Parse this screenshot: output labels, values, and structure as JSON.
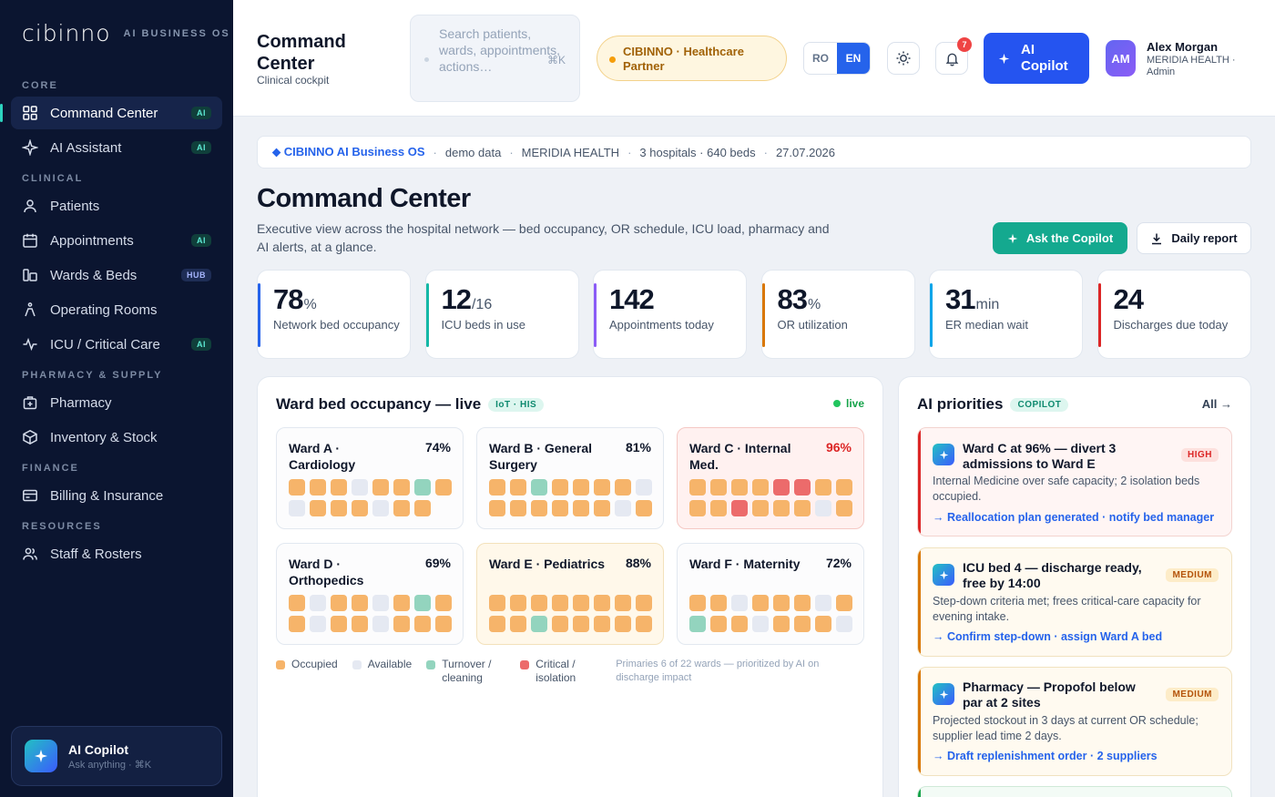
{
  "brand": {
    "logo": "cibinno",
    "tagline": "AI BUSINESS OS"
  },
  "nav": [
    {
      "section": "CORE",
      "items": [
        {
          "label": "Command Center",
          "badge": "AI",
          "icon": "grid-icon",
          "active": true
        },
        {
          "label": "AI Assistant",
          "badge": "AI",
          "icon": "sparkle-icon"
        }
      ]
    },
    {
      "section": "CLINICAL",
      "items": [
        {
          "label": "Patients",
          "icon": "user-icon"
        },
        {
          "label": "Appointments",
          "badge": "AI",
          "icon": "calendar-icon"
        },
        {
          "label": "Wards & Beds",
          "badge": "HUB",
          "icon": "bed-icon"
        },
        {
          "label": "Operating Rooms",
          "icon": "surgery-icon"
        },
        {
          "label": "ICU / Critical Care",
          "badge": "AI",
          "icon": "pulse-icon"
        }
      ]
    },
    {
      "section": "PHARMACY & SUPPLY",
      "items": [
        {
          "label": "Pharmacy",
          "icon": "pharmacy-icon"
        },
        {
          "label": "Inventory & Stock",
          "icon": "box-icon"
        }
      ]
    },
    {
      "section": "FINANCE",
      "items": [
        {
          "label": "Billing & Insurance",
          "icon": "card-icon"
        }
      ]
    },
    {
      "section": "RESOURCES",
      "items": [
        {
          "label": "Staff & Rosters",
          "icon": "team-icon"
        }
      ]
    }
  ],
  "copilot_card": {
    "title": "AI Copilot",
    "subtitle": "Ask anything · ⌘K"
  },
  "topbar": {
    "title": "Command Center",
    "subtitle": "Clinical cockpit",
    "search_placeholder": "Search patients, wards, appointments, actions…",
    "search_kbd": "⌘K",
    "partner": "CIBINNO · Healthcare Partner",
    "lang": [
      "RO",
      "EN"
    ],
    "lang_active": "EN",
    "notif_count": "7",
    "ai_button": "AI Copilot",
    "user": {
      "initials": "AM",
      "name": "Alex Morgan",
      "role": "MERIDIA HEALTH · Admin"
    }
  },
  "breadcrumb": [
    "⬥ CIBINNO AI Business OS",
    "demo data",
    "MERIDIA HEALTH",
    "3 hospitals · 640 beds",
    "27.07.2026"
  ],
  "page": {
    "title": "Command Center",
    "description": "Executive view across the hospital network — bed occupancy, OR schedule, ICU load, pharmacy and AI alerts, at a glance.",
    "ask_button": "Ask the Copilot",
    "report_button": "Daily report"
  },
  "kpis": [
    {
      "value": "78",
      "unit": "%",
      "label": "Network bed occupancy",
      "color": "#2563eb"
    },
    {
      "value": "12",
      "unit": "/16",
      "label": "ICU beds in use",
      "color": "#14b8a6"
    },
    {
      "value": "142",
      "unit": "",
      "label": "Appointments today",
      "color": "#8b5cf6"
    },
    {
      "value": "83",
      "unit": "%",
      "label": "OR utilization",
      "color": "#d97706"
    },
    {
      "value": "31",
      "unit": "min",
      "label": "ER median wait",
      "color": "#0ea5e9"
    },
    {
      "value": "24",
      "unit": "",
      "label": "Discharges due today",
      "color": "#dc2626"
    }
  ],
  "occupancy": {
    "title": "Ward bed occupancy — live",
    "tag": "IoT · HIS",
    "live": "live",
    "wards": [
      {
        "name": "Ward A · Cardiology",
        "pct": "74%",
        "state": "normal",
        "beds": "oooaoot oaoooaoo"
      },
      {
        "name": "Ward B · General Surgery",
        "pct": "81%",
        "state": "normal",
        "beds": "ootooooa ooooooao"
      },
      {
        "name": "Ward C · Internal Med.",
        "pct": "96%",
        "state": "crit",
        "beds": "ooooccoo oocoooao"
      },
      {
        "name": "Ward D · Orthopedics",
        "pct": "69%",
        "state": "normal",
        "beds": "oaooaoto oaooaooo"
      },
      {
        "name": "Ward E · Pediatrics",
        "pct": "88%",
        "state": "warn",
        "beds": "oooooooo ootoooooa"
      },
      {
        "name": "Ward F · Maternity",
        "pct": "72%",
        "state": "normal",
        "beds": "ooaoooao tooaoooa"
      }
    ],
    "legend": [
      {
        "label": "Occupied",
        "color": "#f6b46a"
      },
      {
        "label": "Available",
        "color": "#e5e9f2"
      },
      {
        "label": "Turnover / cleaning",
        "color": "#93d4be"
      },
      {
        "label": "Critical / isolation",
        "color": "#ec6b6b"
      }
    ],
    "note": "Primaries 6 of 22 wards — prioritized by AI on discharge impact"
  },
  "ai_priorities": {
    "title": "AI priorities",
    "tag": "COPILOT",
    "all": "All →",
    "items": [
      {
        "title": "Ward C at 96% — divert 3 admissions to Ward E",
        "level": "HIGH",
        "desc": "Internal Medicine over safe capacity; 2 isolation beds occupied.",
        "action": "→ Reallocation plan generated · notify bed manager"
      },
      {
        "title": "ICU bed 4 — discharge ready, free by 14:00",
        "level": "MEDIUM",
        "desc": "Step-down criteria met; frees critical-care capacity for evening intake.",
        "action": "→ Confirm step-down · assign Ward A bed"
      },
      {
        "title": "Pharmacy — Propofol below par at 2 sites",
        "level": "MEDIUM",
        "desc": "Projected stockout in 3 days at current OR schedule; supplier lead time 2 days.",
        "action": "→ Draft replenishment order · 2 suppliers"
      }
    ]
  }
}
